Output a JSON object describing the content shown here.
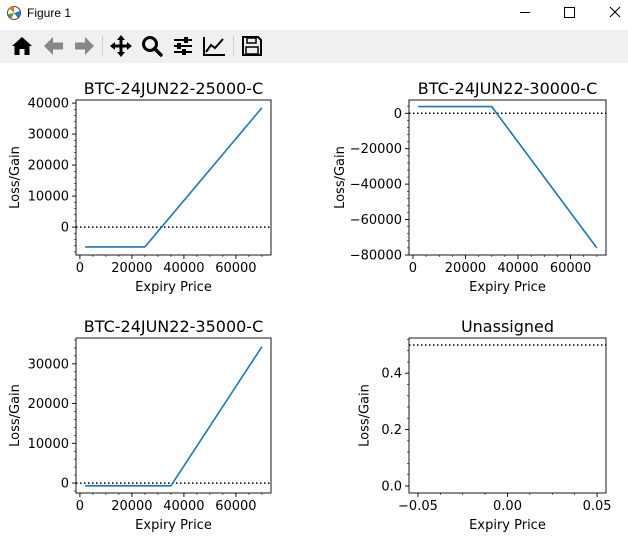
{
  "window": {
    "title": "Figure 1"
  },
  "window_controls": {
    "minimize": "minimize-icon",
    "maximize": "maximize-icon",
    "close": "close-icon"
  },
  "toolbar": {
    "buttons": [
      {
        "name": "home-button",
        "icon": "home-icon"
      },
      {
        "name": "back-button",
        "icon": "arrow-left-icon"
      },
      {
        "name": "forward-button",
        "icon": "arrow-right-icon"
      },
      {
        "name": "pan-button",
        "icon": "move-icon"
      },
      {
        "name": "zoom-button",
        "icon": "magnifier-icon"
      },
      {
        "name": "configure-subplots-button",
        "icon": "sliders-icon"
      },
      {
        "name": "edit-axis-button",
        "icon": "line-chart-icon"
      },
      {
        "name": "save-button",
        "icon": "floppy-disk-icon"
      }
    ]
  },
  "colors": {
    "line": "#1f77b4",
    "reference_line": "#000000",
    "axes": "#000000"
  },
  "chart_data": [
    {
      "type": "line",
      "title": "BTC-24JUN22-25000-C",
      "xlabel": "Expiry Price",
      "ylabel": "Loss/Gain",
      "xlim": [
        -1500,
        73500
      ],
      "ylim": [
        -9000,
        41000
      ],
      "xticks": [
        0,
        20000,
        40000,
        60000
      ],
      "xtick_labels": [
        "0",
        "20000",
        "40000",
        "60000"
      ],
      "yticks": [
        0,
        10000,
        20000,
        30000,
        40000
      ],
      "ytick_labels": [
        "0",
        "10000",
        "20000",
        "30000",
        "40000"
      ],
      "series": [
        {
          "x": [
            2000,
            25000,
            70000
          ],
          "y": [
            -6400,
            -6400,
            38500
          ]
        }
      ],
      "reference_line": {
        "y": 0,
        "style": "dotted"
      },
      "grid": false
    },
    {
      "type": "line",
      "title": "BTC-24JUN22-30000-C",
      "xlabel": "Expiry Price",
      "ylabel": "Loss/Gain",
      "xlim": [
        -1500,
        73500
      ],
      "ylim": [
        -80000,
        7500
      ],
      "xticks": [
        0,
        20000,
        40000,
        60000
      ],
      "xtick_labels": [
        "0",
        "20000",
        "40000",
        "60000"
      ],
      "yticks": [
        0,
        -20000,
        -40000,
        -60000,
        -80000
      ],
      "ytick_labels": [
        "0",
        "−20000",
        "−40000",
        "−60000",
        "−80000"
      ],
      "series": [
        {
          "x": [
            2000,
            30000,
            70000
          ],
          "y": [
            3800,
            3800,
            -76000
          ]
        }
      ],
      "reference_line": {
        "y": 0,
        "style": "dotted"
      },
      "grid": false
    },
    {
      "type": "line",
      "title": "BTC-24JUN22-35000-C",
      "xlabel": "Expiry Price",
      "ylabel": "Loss/Gain",
      "xlim": [
        -1500,
        73500
      ],
      "ylim": [
        -2500,
        36500
      ],
      "xticks": [
        0,
        20000,
        40000,
        60000
      ],
      "xtick_labels": [
        "0",
        "20000",
        "40000",
        "60000"
      ],
      "yticks": [
        0,
        10000,
        20000,
        30000
      ],
      "ytick_labels": [
        "0",
        "10000",
        "20000",
        "30000"
      ],
      "series": [
        {
          "x": [
            2000,
            35000,
            70000
          ],
          "y": [
            -700,
            -700,
            34300
          ]
        }
      ],
      "reference_line": {
        "y": 0,
        "style": "dotted"
      },
      "grid": false
    },
    {
      "type": "line",
      "title": "Unassigned",
      "xlabel": "Expiry Price",
      "ylabel": "Loss/Gain",
      "xlim": [
        -0.055,
        0.055
      ],
      "ylim": [
        -0.025,
        0.525
      ],
      "xticks": [
        -0.05,
        0,
        0.05
      ],
      "xtick_labels": [
        "−0.05",
        "0.00",
        "0.05"
      ],
      "yticks": [
        0,
        0.2,
        0.4
      ],
      "ytick_labels": [
        "0.0",
        "0.2",
        "0.4"
      ],
      "series": [],
      "reference_line": {
        "y": 0.5,
        "style": "dotted"
      },
      "grid": false
    }
  ]
}
